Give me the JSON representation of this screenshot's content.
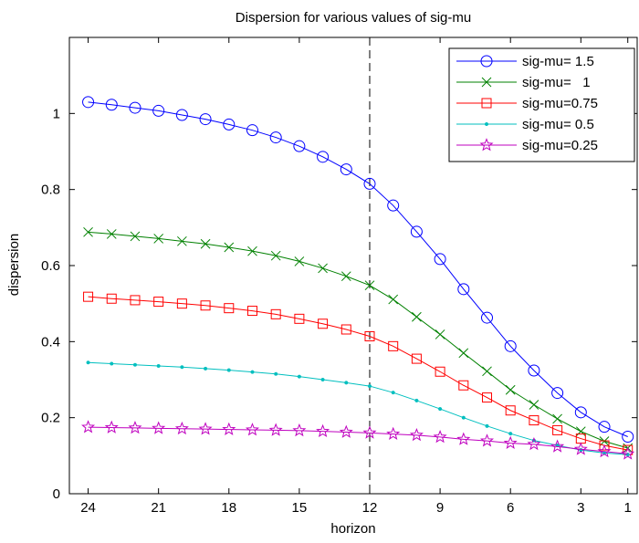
{
  "chart_data": {
    "type": "line",
    "title": "Dispersion for various values of sig-mu",
    "xlabel": "horizon",
    "ylabel": "dispersion",
    "xlim": [
      24.8,
      0.6
    ],
    "xreversed": true,
    "ylim": [
      0,
      1.2
    ],
    "x_ticks": [
      24,
      21,
      18,
      15,
      12,
      9,
      6,
      3,
      1
    ],
    "x_tick_labels": [
      "24",
      "21",
      "18",
      "15",
      "12",
      "9",
      "6",
      "3",
      "1"
    ],
    "y_ticks": [
      0,
      0.2,
      0.4,
      0.6,
      0.8,
      1
    ],
    "y_tick_labels": [
      "0",
      "0.2",
      "0.4",
      "0.6",
      "0.8",
      "1"
    ],
    "grid": false,
    "legend_position": "top-right",
    "vline": {
      "x": 12,
      "style": "dashed",
      "color": "#000000"
    },
    "x": [
      24,
      23,
      22,
      21,
      20,
      19,
      18,
      17,
      16,
      15,
      14,
      13,
      12,
      11,
      10,
      9,
      8,
      7,
      6,
      5,
      4,
      3,
      2,
      1
    ],
    "series": [
      {
        "name": "sig-mu= 1.5",
        "color": "#0000ff",
        "marker": "circle",
        "values": [
          1.03,
          1.023,
          1.015,
          1.007,
          0.996,
          0.985,
          0.971,
          0.956,
          0.937,
          0.914,
          0.886,
          0.853,
          0.815,
          0.758,
          0.689,
          0.617,
          0.538,
          0.463,
          0.388,
          0.324,
          0.265,
          0.214,
          0.176,
          0.15
        ]
      },
      {
        "name": "sig-mu=   1",
        "color": "#008000",
        "marker": "x",
        "values": [
          0.688,
          0.683,
          0.677,
          0.671,
          0.664,
          0.657,
          0.648,
          0.638,
          0.626,
          0.611,
          0.593,
          0.572,
          0.548,
          0.511,
          0.465,
          0.419,
          0.37,
          0.322,
          0.273,
          0.234,
          0.197,
          0.164,
          0.138,
          0.12
        ]
      },
      {
        "name": "sig-mu=0.75",
        "color": "#ff0000",
        "marker": "square",
        "values": [
          0.518,
          0.513,
          0.509,
          0.505,
          0.5,
          0.495,
          0.488,
          0.481,
          0.472,
          0.46,
          0.447,
          0.432,
          0.414,
          0.388,
          0.355,
          0.321,
          0.285,
          0.253,
          0.219,
          0.193,
          0.167,
          0.145,
          0.127,
          0.115
        ]
      },
      {
        "name": "sig-mu= 0.5",
        "color": "#00bfbf",
        "marker": "dot",
        "values": [
          0.345,
          0.342,
          0.339,
          0.336,
          0.333,
          0.329,
          0.325,
          0.32,
          0.315,
          0.308,
          0.3,
          0.292,
          0.283,
          0.266,
          0.245,
          0.223,
          0.2,
          0.178,
          0.158,
          0.14,
          0.127,
          0.115,
          0.107,
          0.103
        ]
      },
      {
        "name": "sig-mu=0.25",
        "color": "#bf00bf",
        "marker": "star",
        "values": [
          0.175,
          0.174,
          0.173,
          0.172,
          0.171,
          0.17,
          0.169,
          0.168,
          0.167,
          0.166,
          0.164,
          0.162,
          0.16,
          0.157,
          0.154,
          0.149,
          0.143,
          0.139,
          0.133,
          0.13,
          0.124,
          0.117,
          0.111,
          0.105
        ]
      }
    ]
  }
}
